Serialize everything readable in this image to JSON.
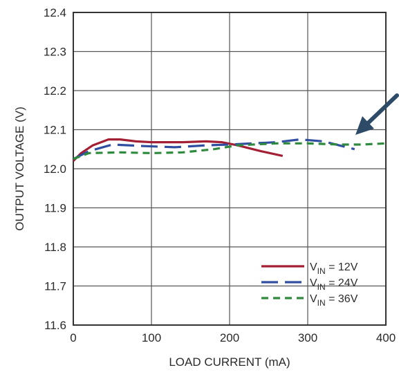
{
  "chart_data": {
    "type": "line",
    "title": "",
    "xlabel": "LOAD CURRENT (mA)",
    "ylabel": "OUTPUT VOLTAGE (V)",
    "xlim": [
      0,
      400
    ],
    "ylim": [
      11.6,
      12.4
    ],
    "xticks": [
      "0",
      "100",
      "200",
      "300",
      "400"
    ],
    "yticks": [
      "11.6",
      "11.7",
      "11.8",
      "11.9",
      "12.0",
      "12.1",
      "12.2",
      "12.3",
      "12.4"
    ],
    "grid": true,
    "legend_position": "bottom-right",
    "series": [
      {
        "name": "VIN = 12V",
        "legend_main": "V",
        "legend_sub": "IN",
        "legend_suffix": " = 12V",
        "color": "#a31f34",
        "dash": "solid",
        "points": [
          [
            0,
            12.02
          ],
          [
            10,
            12.04
          ],
          [
            25,
            12.06
          ],
          [
            45,
            12.075
          ],
          [
            60,
            12.075
          ],
          [
            80,
            12.07
          ],
          [
            100,
            12.068
          ],
          [
            140,
            12.068
          ],
          [
            170,
            12.07
          ],
          [
            190,
            12.068
          ],
          [
            210,
            12.06
          ],
          [
            240,
            12.045
          ],
          [
            268,
            12.033
          ]
        ]
      },
      {
        "name": "VIN = 24V",
        "legend_main": "V",
        "legend_sub": "IN",
        "legend_suffix": " = 24V",
        "color": "#2f4ea0",
        "dash": "long",
        "points": [
          [
            0,
            12.025
          ],
          [
            20,
            12.045
          ],
          [
            50,
            12.062
          ],
          [
            90,
            12.058
          ],
          [
            130,
            12.055
          ],
          [
            170,
            12.06
          ],
          [
            200,
            12.062
          ],
          [
            230,
            12.065
          ],
          [
            260,
            12.068
          ],
          [
            290,
            12.075
          ],
          [
            320,
            12.07
          ],
          [
            340,
            12.06
          ],
          [
            360,
            12.05
          ]
        ]
      },
      {
        "name": "VIN = 36V",
        "legend_main": "V",
        "legend_sub": "IN",
        "legend_suffix": " = 36V",
        "color": "#2e8b3d",
        "dash": "short",
        "points": [
          [
            0,
            12.025
          ],
          [
            20,
            12.04
          ],
          [
            60,
            12.042
          ],
          [
            100,
            12.04
          ],
          [
            140,
            12.042
          ],
          [
            180,
            12.05
          ],
          [
            210,
            12.06
          ],
          [
            260,
            12.065
          ],
          [
            300,
            12.065
          ],
          [
            340,
            12.062
          ],
          [
            370,
            12.062
          ],
          [
            400,
            12.065
          ]
        ]
      }
    ]
  },
  "annotation": {
    "arrow_color": "#2d4a67"
  }
}
